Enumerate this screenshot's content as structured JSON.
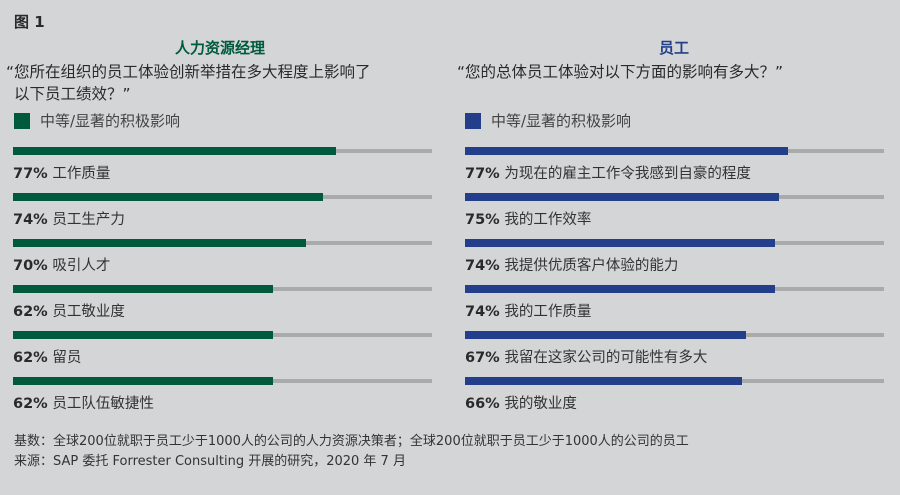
{
  "figure_label": "图 1",
  "footer": {
    "base": "基数：全球200位就职于员工少于1000人的公司的人力资源决策者；全球200位就职于员工少于1000人的公司的员工",
    "source": "来源：SAP 委托 Forrester Consulting 开展的研究，2020 年 7 月"
  },
  "chart_data": [
    {
      "type": "bar",
      "orientation": "horizontal",
      "title": "人力资源经理",
      "question": "“您所在组织的员工体验创新举措在多大程度上影响了以下员工绩效？”",
      "question_lines": [
        "“您所在组织的员工体验创新举措在多大程度上影响了",
        "以下员工绩效？”"
      ],
      "legend": "中等/显著的积极影响",
      "color": "#005a3c",
      "xlim": [
        0,
        100
      ],
      "categories": [
        "工作质量",
        "员工生产力",
        "吸引人才",
        "员工敬业度",
        "留员",
        "员工队伍敏捷性"
      ],
      "values": [
        77,
        74,
        70,
        62,
        62,
        62
      ],
      "labels": [
        "77%",
        "74%",
        "70%",
        "62%",
        "62%",
        "62%"
      ]
    },
    {
      "type": "bar",
      "orientation": "horizontal",
      "title": "员工",
      "question": "“您的总体员工体验对以下方面的影响有多大？”",
      "question_lines": [
        "“您的总体员工体验对以下方面的影响有多大？”"
      ],
      "legend": "中等/显著的积极影响",
      "color": "#233f8c",
      "xlim": [
        0,
        100
      ],
      "categories": [
        "为现在的雇主工作令我感到自豪的程度",
        "我的工作效率",
        "我提供优质客户体验的能力",
        "我的工作质量",
        "我留在这家公司的可能性有多大",
        "我的敬业度"
      ],
      "values": [
        77,
        75,
        74,
        74,
        67,
        66
      ],
      "labels": [
        "77%",
        "75%",
        "74%",
        "74%",
        "67%",
        "66%"
      ]
    }
  ]
}
